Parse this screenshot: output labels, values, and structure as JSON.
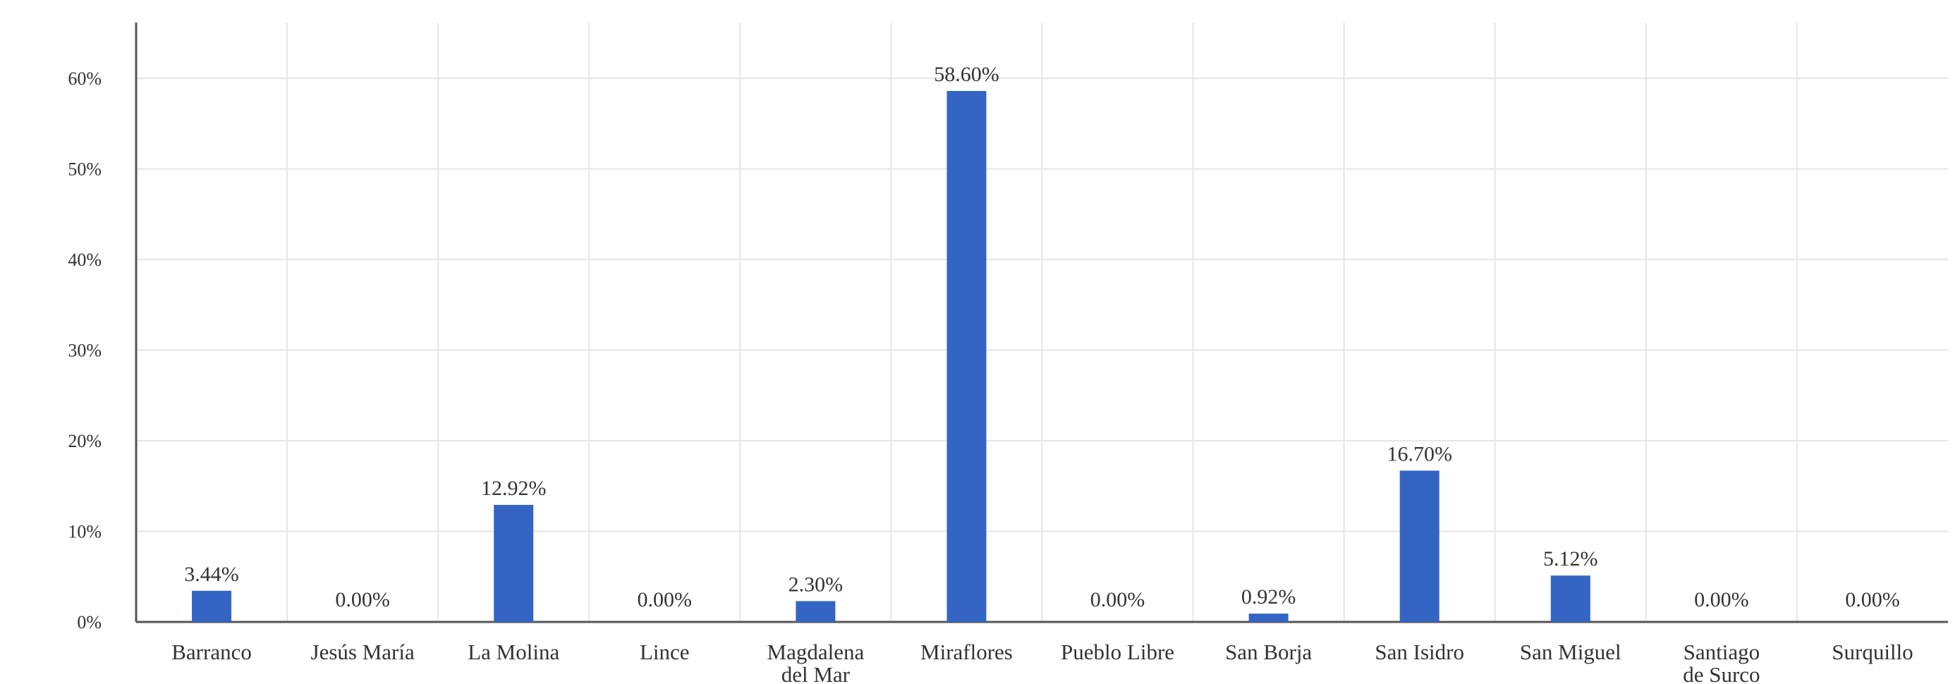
{
  "chart_data": {
    "type": "bar",
    "title": "",
    "xlabel": "",
    "ylabel": "",
    "categories": [
      "Barranco",
      "Jesús María",
      "La Molina",
      "Lince",
      "Magdalena del Mar",
      "Miraflores",
      "Pueblo Libre",
      "San Borja",
      "San Isidro",
      "San Miguel",
      "Santiago de Surco",
      "Surquillo"
    ],
    "values": [
      3.44,
      0.0,
      12.92,
      0.0,
      2.3,
      58.6,
      0.0,
      0.92,
      16.7,
      5.12,
      0.0,
      0.0
    ],
    "value_labels": [
      "3.44%",
      "0.00%",
      "12.92%",
      "0.00%",
      "2.30%",
      "58.60%",
      "0.00%",
      "0.92%",
      "16.70%",
      "5.12%",
      "0.00%",
      "0.00%"
    ],
    "ylim": [
      0,
      60
    ],
    "yticks": [
      0,
      10,
      20,
      30,
      40,
      50,
      60
    ],
    "ytick_labels": [
      "0%",
      "10%",
      "20%",
      "30%",
      "40%",
      "50%",
      "60%"
    ],
    "grid": true,
    "legend": "none",
    "bar_color": "#3465c4"
  }
}
